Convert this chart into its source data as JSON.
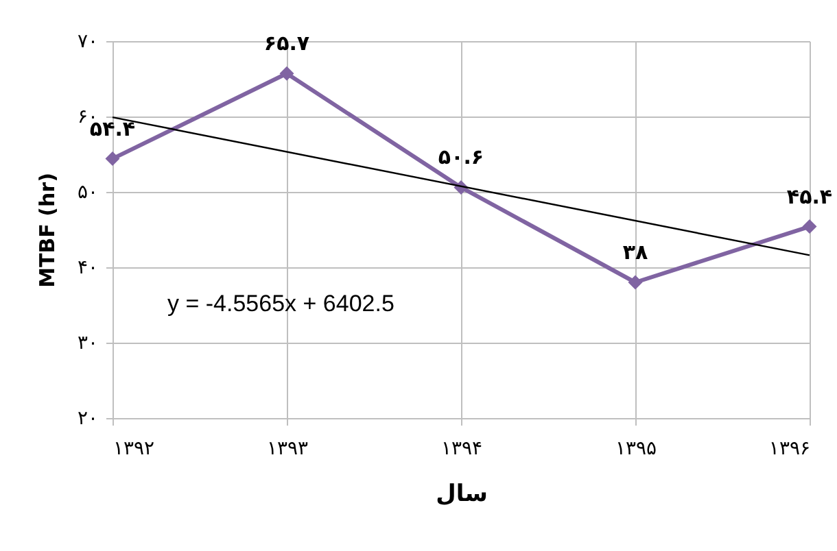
{
  "chart_data": {
    "type": "line",
    "xlabel": "سال",
    "ylabel": "MTBF (hr)",
    "x": [
      1392,
      1393,
      1394,
      1395,
      1396
    ],
    "series": [
      {
        "color": "#8064a2",
        "values": [
          54.4,
          65.7,
          50.6,
          38,
          45.4
        ],
        "marker": "diamond",
        "value_labels": [
          "۵۴.۴",
          "۶۵.۷",
          "۵۰.۶",
          "۳۸",
          "۴۵.۴"
        ]
      },
      {
        "type": "line",
        "color": "#000000",
        "x": [
          1392,
          1396
        ],
        "values": [
          59.9,
          41.6
        ],
        "marker": "none"
      }
    ],
    "xlim": [
      1392,
      1396
    ],
    "xticks": [
      {
        "value": 1392,
        "label": "۱۳۹۲"
      },
      {
        "value": 1393,
        "label": "۱۳۹۳"
      },
      {
        "value": 1394,
        "label": "۱۳۹۴"
      },
      {
        "value": 1395,
        "label": "۱۳۹۵"
      },
      {
        "value": 1396,
        "label": "۱۳۹۶"
      }
    ],
    "ylim": [
      20,
      70
    ],
    "yticks": [
      {
        "value": 20,
        "label": "۲۰"
      },
      {
        "value": 30,
        "label": "۳۰"
      },
      {
        "value": 40,
        "label": "۴۰"
      },
      {
        "value": 50,
        "label": "۵۰"
      },
      {
        "value": 60,
        "label": "۶۰"
      },
      {
        "value": 70,
        "label": "۷۰"
      }
    ],
    "grid": true,
    "annotations": [
      "y = -4.5565x + 6402.5"
    ]
  }
}
